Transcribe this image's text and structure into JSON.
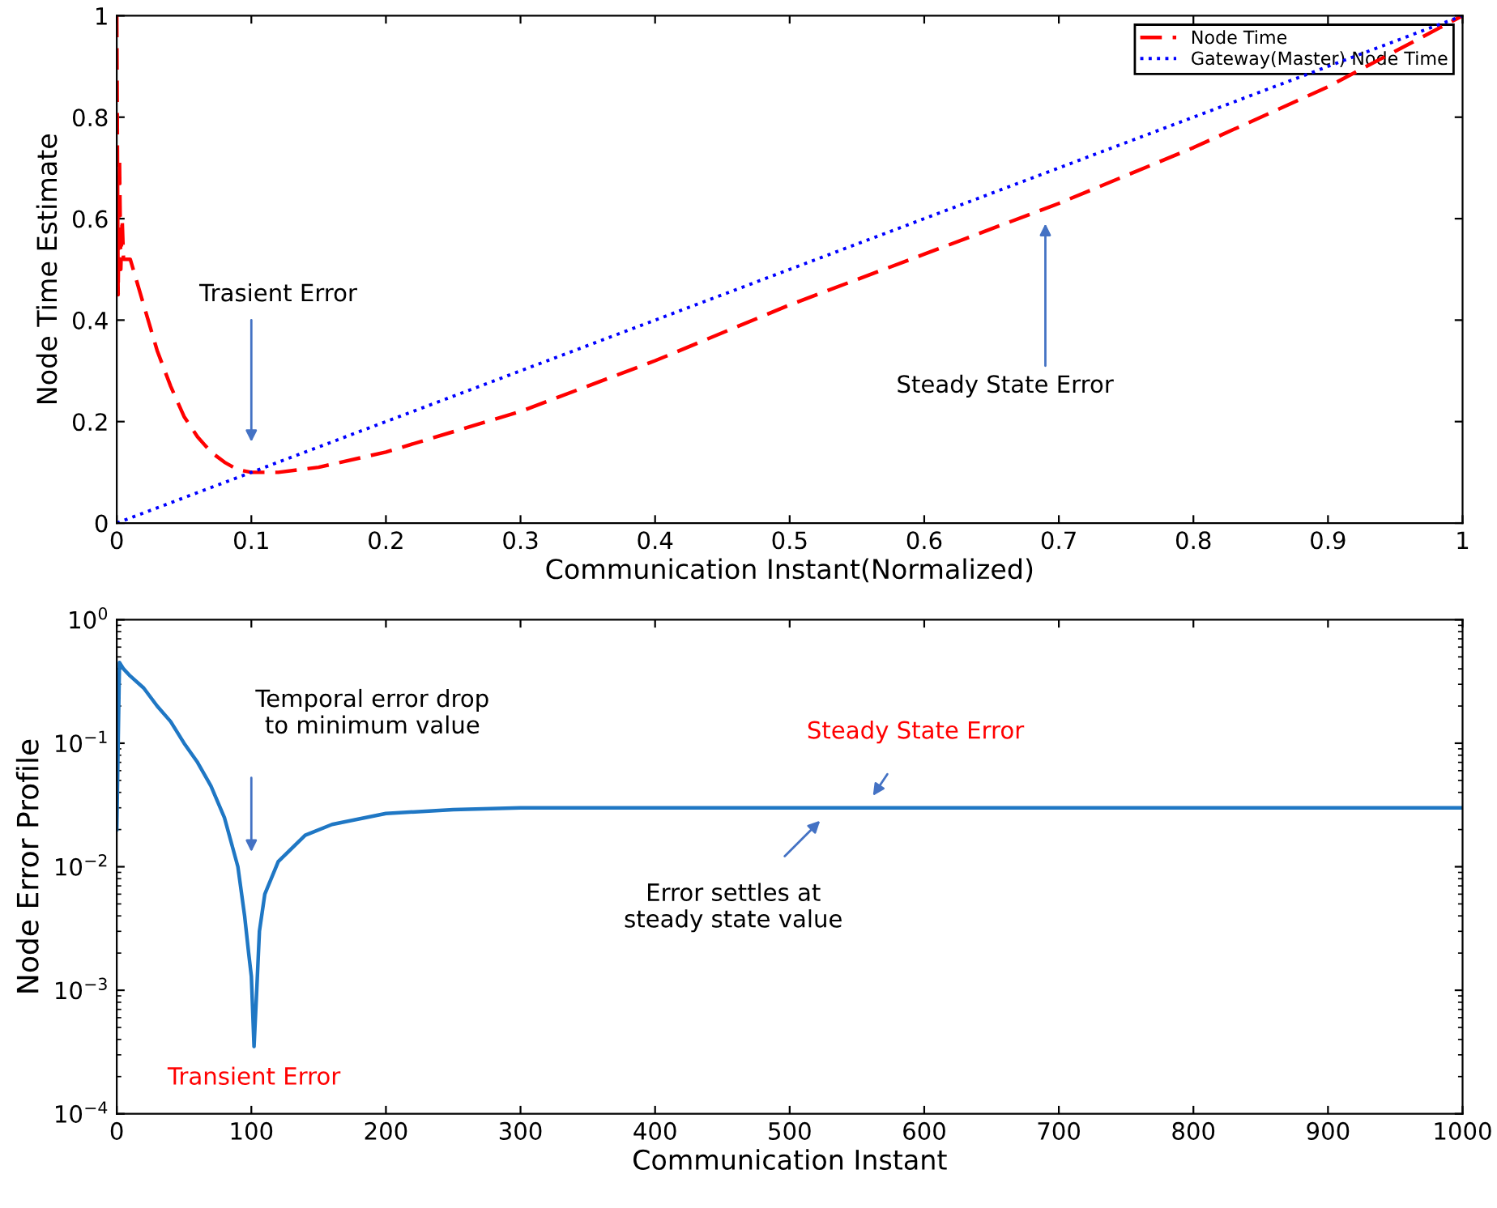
{
  "chart_data": [
    {
      "type": "line",
      "xlabel": "Communication Instant(Normalized)",
      "ylabel": "Node Time Estimate",
      "xlim": [
        0,
        1
      ],
      "ylim": [
        0,
        1
      ],
      "xticks": [
        0,
        0.1,
        0.2,
        0.3,
        0.4,
        0.5,
        0.6,
        0.7,
        0.8,
        0.9,
        1
      ],
      "yticks": [
        0,
        0.2,
        0.4,
        0.6,
        0.8,
        1
      ],
      "grid": false,
      "legend": "top right",
      "marker": "none",
      "series": [
        {
          "name": "Node Time",
          "color": "#ff0000",
          "line_style": "dashed",
          "x": [
            0,
            0.001,
            0.002,
            0.003,
            0.004,
            0.005,
            0.01,
            0.02,
            0.03,
            0.04,
            0.05,
            0.06,
            0.07,
            0.08,
            0.09,
            0.1,
            0.12,
            0.15,
            0.2,
            0.3,
            0.4,
            0.5,
            0.6,
            0.7,
            0.8,
            0.9,
            0.95,
            1
          ],
          "values": [
            1.0,
            0.45,
            0.72,
            0.5,
            0.6,
            0.52,
            0.52,
            0.43,
            0.34,
            0.27,
            0.21,
            0.17,
            0.14,
            0.12,
            0.105,
            0.1,
            0.1,
            0.11,
            0.14,
            0.22,
            0.32,
            0.43,
            0.53,
            0.63,
            0.74,
            0.86,
            0.93,
            1.0
          ]
        },
        {
          "name": "Gateway(Master) Node Time",
          "color": "#0000ff",
          "line_style": "dotted",
          "x": [
            0,
            1
          ],
          "values": [
            0,
            1
          ]
        }
      ],
      "annotations": [
        "Trasient Error",
        "Steady State Error"
      ]
    },
    {
      "type": "line",
      "xlabel": "Communication Instant",
      "ylabel": "Node Error Profile",
      "log": "y",
      "xlim": [
        0,
        1000
      ],
      "ylim": [
        0.0001,
        1
      ],
      "xticks": [
        0,
        100,
        200,
        300,
        400,
        500,
        600,
        700,
        800,
        900,
        1000
      ],
      "yticks": [
        {
          "value": 0.0001,
          "label": "10$^{−4}$"
        },
        {
          "value": 0.001,
          "label": "10$^{−3}$"
        },
        {
          "value": 0.01,
          "label": "10$^{−2}$"
        },
        {
          "value": 0.1,
          "label": "10$^{−1}$"
        },
        {
          "value": 1,
          "label": "10$^{0}$"
        }
      ],
      "grid": false,
      "legend": false,
      "marker": "none",
      "series": [
        {
          "color": "#1f77c4",
          "line_style": "solid",
          "x": [
            0,
            2,
            5,
            10,
            20,
            30,
            40,
            50,
            60,
            70,
            80,
            90,
            95,
            98,
            100,
            102,
            104,
            106,
            110,
            120,
            140,
            160,
            200,
            250,
            300,
            400,
            600,
            800,
            1000
          ],
          "values": [
            0.02,
            0.45,
            0.4,
            0.35,
            0.28,
            0.2,
            0.15,
            0.1,
            0.07,
            0.045,
            0.025,
            0.01,
            0.004,
            0.002,
            0.0013,
            0.00035,
            0.001,
            0.003,
            0.006,
            0.011,
            0.018,
            0.022,
            0.027,
            0.029,
            0.03,
            0.03,
            0.03,
            0.03,
            0.03
          ]
        }
      ],
      "annotations": [
        "Temporal error drop\nto minimum value",
        {
          "text": "Transient Error",
          "x": 102,
          "y": 0.00035
        },
        {
          "text": "Steady State Error",
          "x": 560,
          "y": 0.035
        },
        {
          "text": "Error settles at\nsteady state value",
          "x": 525,
          "y": 0.025
        }
      ]
    }
  ]
}
